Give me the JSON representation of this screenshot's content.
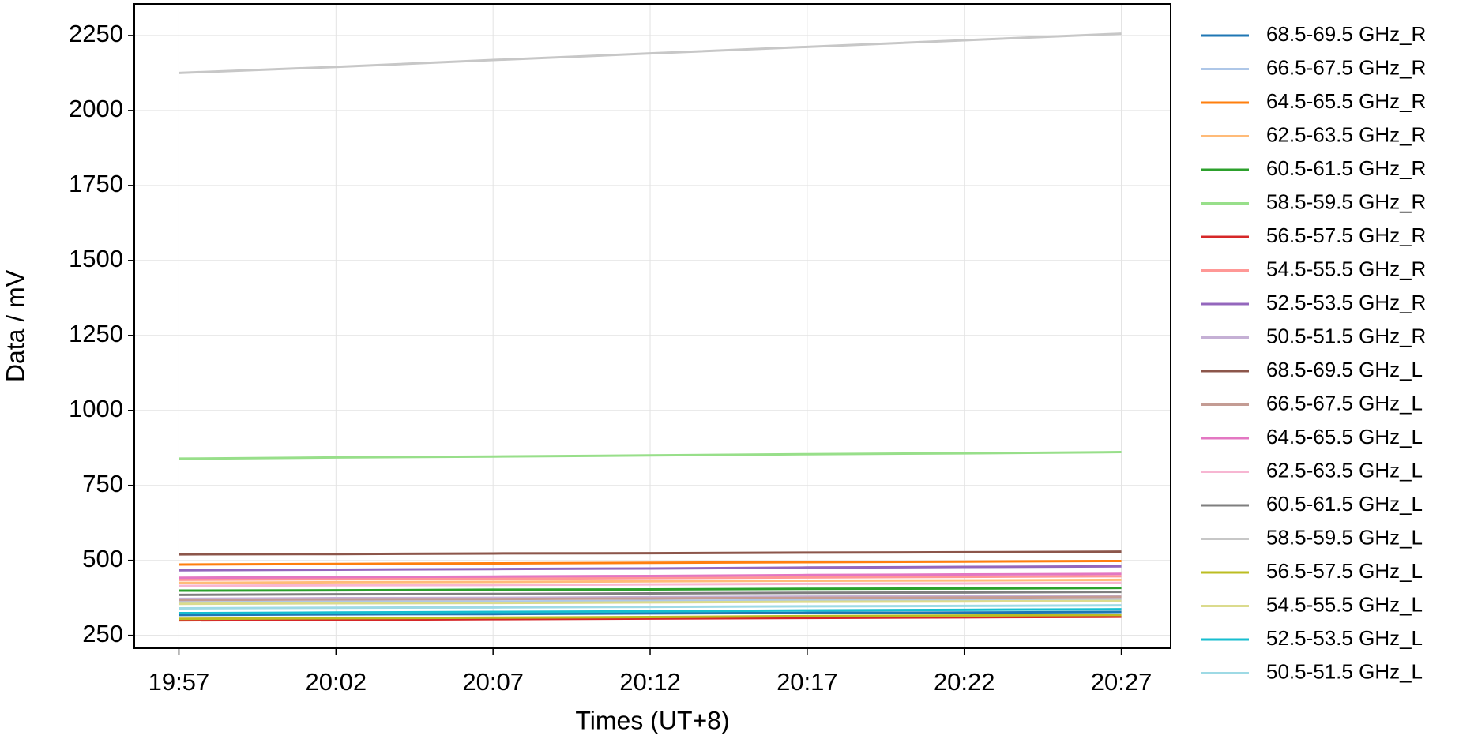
{
  "chart_data": {
    "type": "line",
    "x_label": "Times (UT+8)",
    "y_label": "Data / mV",
    "x": [
      1197,
      1202,
      1207,
      1212,
      1217,
      1222,
      1227
    ],
    "xlim": [
      1195.58,
      1228.57
    ],
    "xticks": [
      {
        "value": 1197,
        "label": "19:57"
      },
      {
        "value": 1202,
        "label": "20:02"
      },
      {
        "value": 1207,
        "label": "20:07"
      },
      {
        "value": 1212,
        "label": "20:12"
      },
      {
        "value": 1217,
        "label": "20:17"
      },
      {
        "value": 1222,
        "label": "20:22"
      },
      {
        "value": 1227,
        "label": "20:27"
      }
    ],
    "ylim": [
      207,
      2355
    ],
    "yticks": [
      250,
      500,
      750,
      1000,
      1250,
      1500,
      1750,
      2000,
      2250
    ],
    "grid": true,
    "legend": "outside-right",
    "series": [
      {
        "name": "68.5-69.5 GHz_R",
        "color": "#1f77b4",
        "values": [
          318,
          320,
          321,
          323,
          325,
          326,
          328
        ]
      },
      {
        "name": "66.5-67.5 GHz_R",
        "color": "#aec7e8",
        "values": [
          360,
          362,
          363,
          365,
          367,
          368,
          370
        ]
      },
      {
        "name": "64.5-65.5 GHz_R",
        "color": "#ff7f0e",
        "values": [
          486,
          488,
          490,
          492,
          494,
          496,
          498
        ]
      },
      {
        "name": "62.5-63.5 GHz_R",
        "color": "#ffbb78",
        "values": [
          425,
          427,
          428,
          430,
          432,
          433,
          435
        ]
      },
      {
        "name": "60.5-61.5 GHz_R",
        "color": "#2ca02c",
        "values": [
          399,
          400,
          402,
          403,
          405,
          406,
          408
        ]
      },
      {
        "name": "58.5-59.5 GHz_R",
        "color": "#98df8a",
        "values": [
          839,
          843,
          846,
          850,
          854,
          857,
          861
        ]
      },
      {
        "name": "56.5-57.5 GHz_R",
        "color": "#d62728",
        "values": [
          300,
          302,
          304,
          306,
          308,
          310,
          312
        ]
      },
      {
        "name": "54.5-55.5 GHz_R",
        "color": "#ff9896",
        "values": [
          435,
          437,
          439,
          441,
          443,
          445,
          447
        ]
      },
      {
        "name": "52.5-53.5 GHz_R",
        "color": "#9467bd",
        "values": [
          467,
          469,
          471,
          473,
          476,
          478,
          480
        ]
      },
      {
        "name": "50.5-51.5 GHz_R",
        "color": "#c5b0d5",
        "values": [
          372,
          374,
          375,
          377,
          379,
          380,
          382
        ]
      },
      {
        "name": "68.5-69.5 GHz_L",
        "color": "#8c564b",
        "values": [
          520,
          521,
          523,
          524,
          526,
          527,
          529
        ]
      },
      {
        "name": "66.5-67.5 GHz_L",
        "color": "#c49c94",
        "values": [
          368,
          370,
          371,
          373,
          375,
          376,
          378
        ]
      },
      {
        "name": "64.5-65.5 GHz_L",
        "color": "#e377c2",
        "values": [
          442,
          444,
          446,
          448,
          451,
          453,
          455
        ]
      },
      {
        "name": "62.5-63.5 GHz_L",
        "color": "#f7b6d2",
        "values": [
          415,
          417,
          418,
          420,
          422,
          423,
          425
        ]
      },
      {
        "name": "60.5-61.5 GHz_L",
        "color": "#7f7f7f",
        "values": [
          385,
          387,
          388,
          390,
          392,
          393,
          395
        ]
      },
      {
        "name": "58.5-59.5 GHz_L",
        "color": "#c7c7c7",
        "values": [
          2125,
          2145,
          2168,
          2190,
          2212,
          2234,
          2256
        ]
      },
      {
        "name": "56.5-57.5 GHz_L",
        "color": "#bcbd22",
        "values": [
          305,
          307,
          309,
          311,
          314,
          316,
          318
        ]
      },
      {
        "name": "54.5-55.5 GHz_L",
        "color": "#dbdb8d",
        "values": [
          355,
          357,
          358,
          360,
          362,
          363,
          365
        ]
      },
      {
        "name": "52.5-53.5 GHz_L",
        "color": "#17becf",
        "values": [
          324,
          326,
          328,
          330,
          333,
          335,
          337
        ]
      },
      {
        "name": "50.5-51.5 GHz_L",
        "color": "#9edae5",
        "values": [
          340,
          342,
          343,
          345,
          347,
          348,
          350
        ]
      }
    ]
  }
}
